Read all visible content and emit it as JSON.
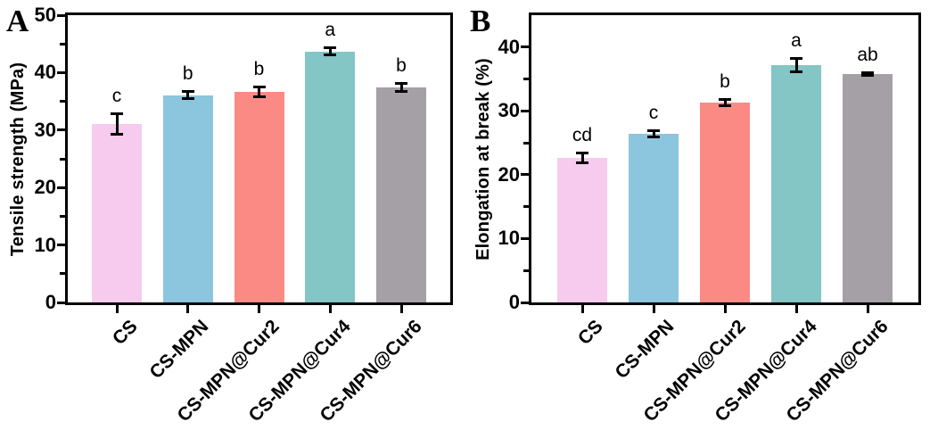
{
  "figure": {
    "background": "#ffffff",
    "axis_color": "#000000",
    "bar_colors": [
      "#f6cbee",
      "#8cc5de",
      "#fc8a84",
      "#84c5c6",
      "#a4a0a5"
    ],
    "panel_a_letter": "A",
    "panel_b_letter": "B"
  },
  "chart_data": [
    {
      "type": "bar",
      "panel_label": "A",
      "title": "",
      "xlabel": "",
      "ylabel": "Tensile strength (MPa)",
      "categories": [
        "CS",
        "CS-MPN",
        "CS-MPN@Cur2",
        "CS-MPN@Cur4",
        "CS-MPN@Cur6"
      ],
      "values": [
        31.1,
        36.1,
        36.6,
        43.7,
        37.4
      ],
      "errors": [
        2.0,
        0.8,
        1.1,
        0.9,
        0.9
      ],
      "significance_labels": [
        "c",
        "b",
        "b",
        "a",
        "b"
      ],
      "ylim": [
        0,
        50
      ],
      "yticks": [
        0,
        10,
        20,
        30,
        40,
        50
      ],
      "minor_tick_step": 5,
      "grid": false,
      "legend": "none"
    },
    {
      "type": "bar",
      "panel_label": "B",
      "title": "",
      "xlabel": "",
      "ylabel": "Elongation at break (%)",
      "categories": [
        "CS",
        "CS-MPN",
        "CS-MPN@Cur2",
        "CS-MPN@Cur4",
        "CS-MPN@Cur6"
      ],
      "values": [
        22.6,
        26.4,
        31.3,
        37.2,
        35.8
      ],
      "errors": [
        1.0,
        0.7,
        0.7,
        1.3,
        0.4
      ],
      "significance_labels": [
        "cd",
        "c",
        "b",
        "a",
        "ab"
      ],
      "ylim": [
        0,
        45
      ],
      "yticks": [
        0,
        10,
        20,
        30,
        40
      ],
      "minor_tick_step": 5,
      "grid": false,
      "legend": "none"
    }
  ]
}
